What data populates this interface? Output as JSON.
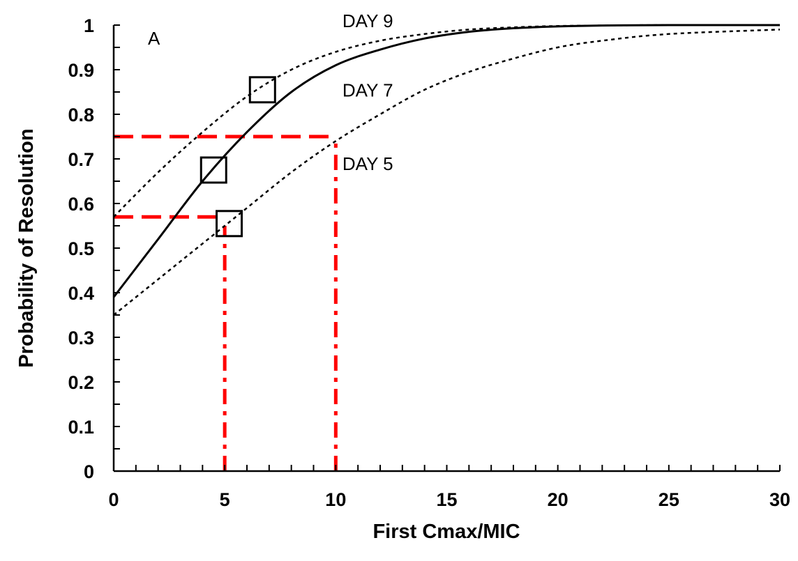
{
  "chart_data": {
    "type": "line",
    "panel_label": "A",
    "xlabel": "First Cmax/MIC",
    "ylabel": "Probability of Resolution",
    "xlim": [
      0,
      30
    ],
    "ylim": [
      0,
      1
    ],
    "x_ticks": [
      "0",
      "5",
      "10",
      "15",
      "20",
      "25",
      "30"
    ],
    "y_ticks": [
      "0",
      "0.1",
      "0.2",
      "0.3",
      "0.4",
      "0.5",
      "0.6",
      "0.7",
      "0.8",
      "0.9",
      "1"
    ],
    "grid": false,
    "series": [
      {
        "name": "DAY 9",
        "style": "dotted",
        "x": [
          0,
          2,
          4,
          6,
          8,
          10,
          12,
          14,
          16,
          18,
          20,
          22,
          25,
          30
        ],
        "y": [
          0.57,
          0.67,
          0.76,
          0.84,
          0.9,
          0.94,
          0.965,
          0.98,
          0.99,
          0.995,
          0.998,
          0.999,
          1.0,
          1.0
        ]
      },
      {
        "name": "DAY 7",
        "style": "solid",
        "x": [
          0,
          2,
          4,
          6,
          8,
          10,
          12,
          14,
          16,
          18,
          20,
          22,
          25,
          30
        ],
        "y": [
          0.39,
          0.52,
          0.65,
          0.76,
          0.85,
          0.91,
          0.945,
          0.97,
          0.985,
          0.993,
          0.997,
          0.999,
          1.0,
          1.0
        ]
      },
      {
        "name": "DAY 5",
        "style": "dotted",
        "x": [
          0,
          2,
          4,
          6,
          8,
          10,
          12,
          14,
          16,
          18,
          20,
          22,
          25,
          30
        ],
        "y": [
          0.35,
          0.43,
          0.51,
          0.59,
          0.67,
          0.74,
          0.8,
          0.855,
          0.895,
          0.925,
          0.95,
          0.965,
          0.98,
          0.99
        ]
      }
    ],
    "markers": [
      {
        "series": "DAY 9",
        "x": 6.7,
        "y": 0.855
      },
      {
        "series": "DAY 7",
        "x": 4.5,
        "y": 0.675
      },
      {
        "series": "DAY 5",
        "x": 5.2,
        "y": 0.555
      }
    ],
    "reference_lines": [
      {
        "kind": "horizontal",
        "y": 0.75,
        "x_from": 0,
        "x_to": 10,
        "color": "#ff0000"
      },
      {
        "kind": "vertical",
        "x": 10,
        "y_from": 0,
        "y_to": 0.75,
        "color": "#ff0000"
      },
      {
        "kind": "horizontal",
        "y": 0.57,
        "x_from": 0,
        "x_to": 5,
        "color": "#ff0000"
      },
      {
        "kind": "vertical",
        "x": 5,
        "y_from": 0,
        "y_to": 0.55,
        "color": "#ff0000"
      }
    ]
  }
}
